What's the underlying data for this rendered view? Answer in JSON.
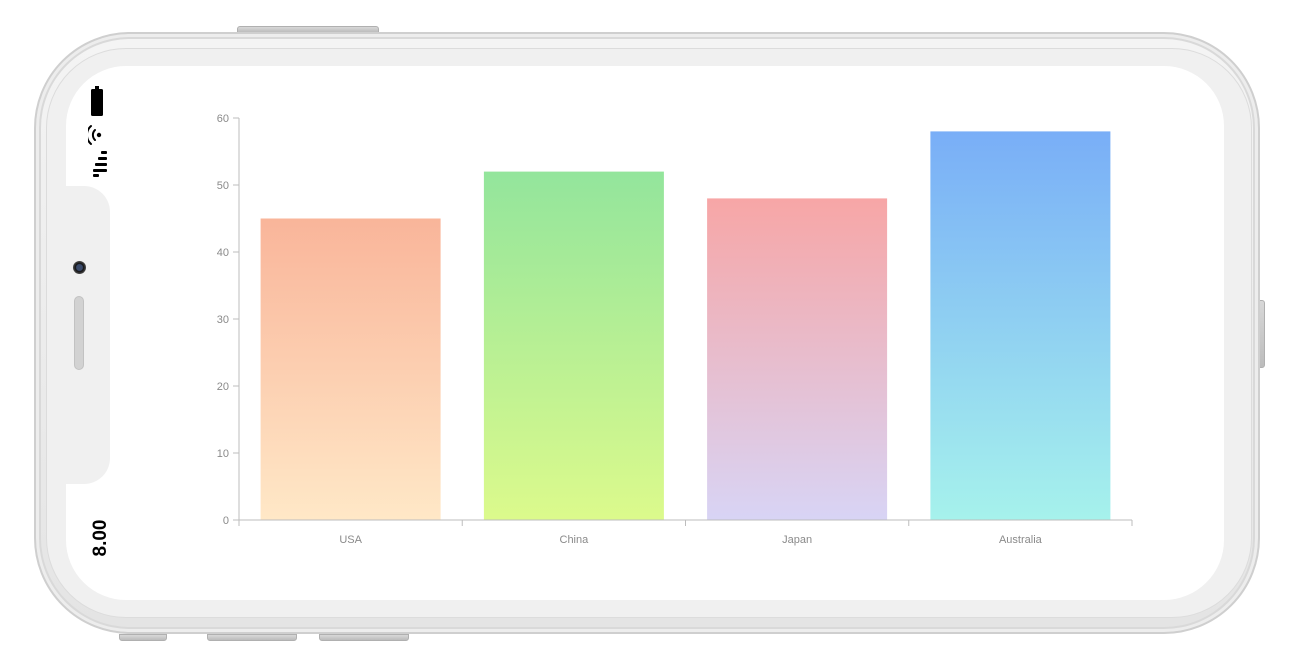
{
  "status_bar": {
    "time": "8.00",
    "icons": [
      "battery-icon",
      "wifi-icon",
      "signal-icon"
    ]
  },
  "chart_data": {
    "type": "bar",
    "categories": [
      "USA",
      "China",
      "Japan",
      "Australia"
    ],
    "values": [
      45,
      52,
      48,
      58
    ],
    "ylim": [
      0,
      60
    ],
    "yticks": [
      0,
      10,
      20,
      30,
      40,
      50,
      60
    ],
    "grid": false,
    "bar_gradients": [
      {
        "top": "#F9B59A",
        "bottom": "#FFE8C7"
      },
      {
        "top": "#93E59C",
        "bottom": "#DCFA8C"
      },
      {
        "top": "#F7A6A6",
        "bottom": "#D8D4F5"
      },
      {
        "top": "#79AEF7",
        "bottom": "#A6F2EC"
      }
    ],
    "axis_color": "#bdbdbd",
    "label_color": "#8a8a8a"
  }
}
